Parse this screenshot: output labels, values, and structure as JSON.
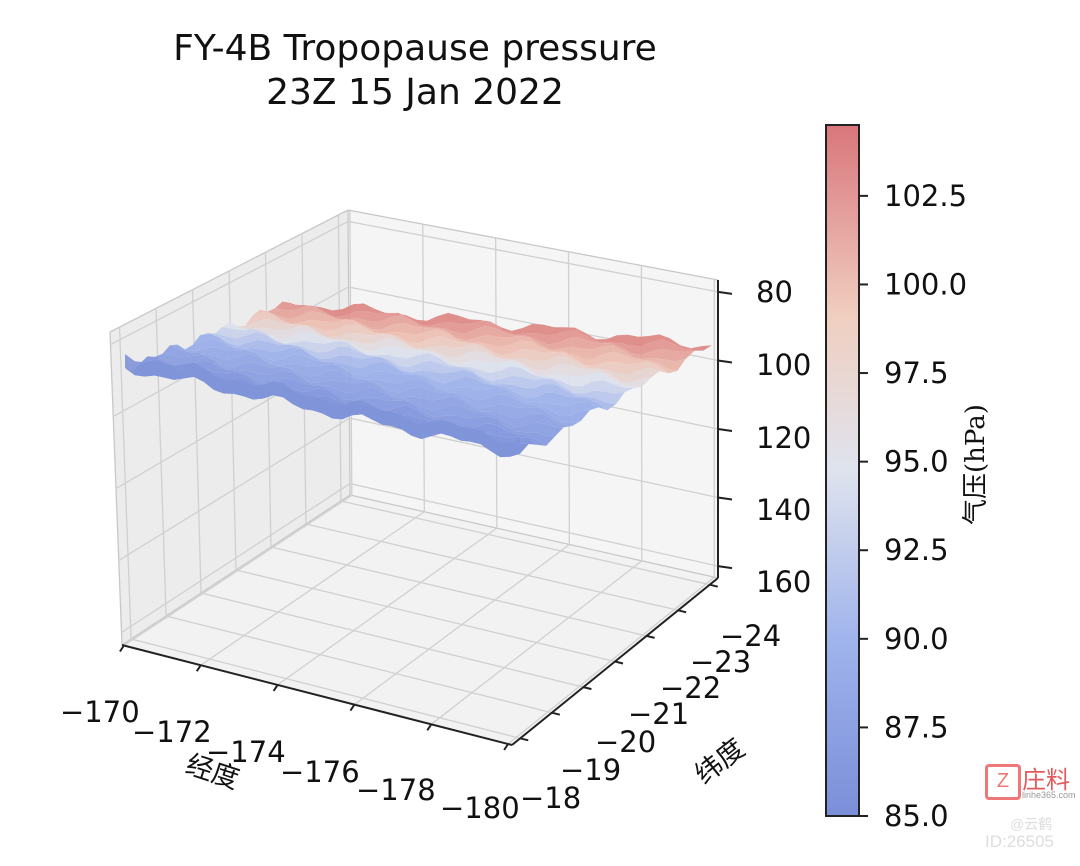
{
  "chart_data": {
    "type": "surface3d",
    "title": [
      "FY-4B Tropopause pressure",
      "23Z 15 Jan 2022"
    ],
    "xlabel": "经度",
    "ylabel": "纬度",
    "zlabel": "",
    "x_ticks": [
      "−170",
      "−172",
      "−174",
      "−176",
      "−178",
      "−180"
    ],
    "y_ticks": [
      "−18",
      "−19",
      "−20",
      "−21",
      "−22",
      "−23",
      "−24"
    ],
    "z_ticks": [
      "80",
      "100",
      "120",
      "140",
      "160"
    ],
    "xlim": [
      -170,
      -180
    ],
    "ylim": [
      -18,
      -24
    ],
    "zlim": [
      80,
      160
    ],
    "z_inverted": true,
    "colormap": "coolwarm",
    "colorbar": {
      "label": "气压(hPa)",
      "range": [
        85.0,
        104.5
      ],
      "ticks": [
        "85.0",
        "87.5",
        "90.0",
        "92.5",
        "95.0",
        "97.5",
        "100.0",
        "102.5"
      ]
    },
    "surface_summary": {
      "note": "tropopause pressure approx 94–100 hPa; higher (red, ~101–104 hPa) toward lat −24 and lon −172…−176; lower (blue, ~87–90 hPa) toward lat −18"
    }
  },
  "watermark": {
    "logo_text": "庄料",
    "sub_text": "linhe365.com",
    "handle": "@云鹤",
    "id": "ID:26505"
  }
}
